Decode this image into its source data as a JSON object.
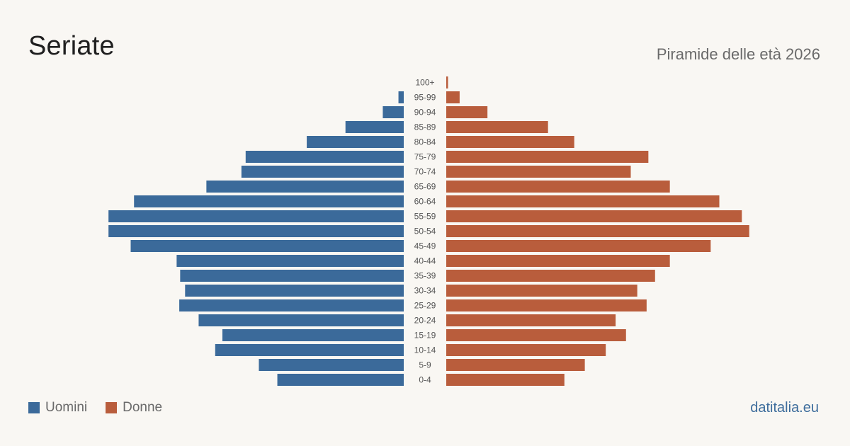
{
  "header": {
    "title": "Seriate",
    "subtitle": "Piramide delle età 2026"
  },
  "legend": {
    "men_label": "Uomini",
    "women_label": "Donne"
  },
  "footer": {
    "source": "datitalia.eu"
  },
  "colors": {
    "men": "#3b6a9a",
    "women": "#b95d3c",
    "age_label": "#555555"
  },
  "chart_data": {
    "type": "bar",
    "orientation": "horizontal-population-pyramid",
    "categories": [
      "0-4",
      "5-9",
      "10-14",
      "15-19",
      "20-24",
      "25-29",
      "30-34",
      "35-39",
      "40-44",
      "45-49",
      "50-54",
      "55-59",
      "60-64",
      "65-69",
      "70-74",
      "75-79",
      "80-84",
      "85-89",
      "90-94",
      "95-99",
      "100+"
    ],
    "series": [
      {
        "name": "Uomini",
        "values": [
          718,
          823,
          1071,
          1030,
          1165,
          1275,
          1242,
          1270,
          1290,
          1551,
          1677,
          1677,
          1532,
          1121,
          922,
          898,
          551,
          331,
          119,
          30,
          0
        ]
      },
      {
        "name": "Donne",
        "values": [
          671,
          787,
          906,
          1021,
          962,
          1138,
          1085,
          1186,
          1270,
          1502,
          1721,
          1679,
          1551,
          1270,
          1048,
          1148,
          727,
          578,
          234,
          76,
          10
        ]
      }
    ],
    "xlim": [
      0,
      1730
    ],
    "grid": false,
    "legend_position": "bottom-left"
  }
}
